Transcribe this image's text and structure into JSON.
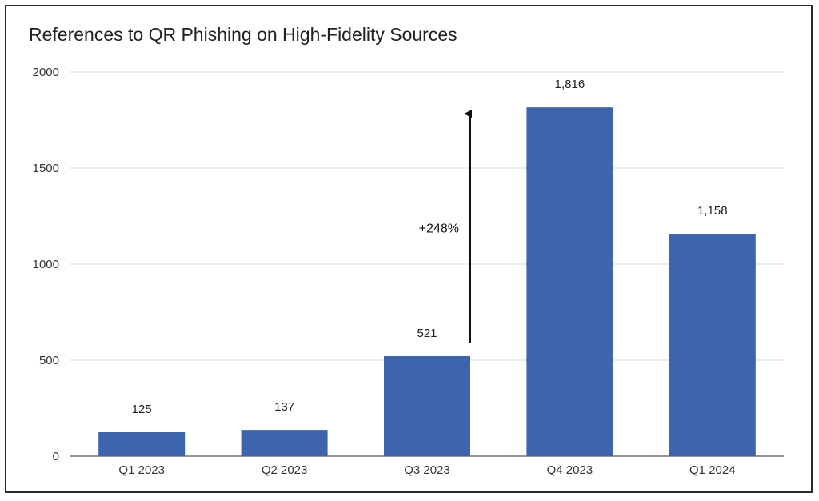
{
  "chart_data": {
    "type": "bar",
    "title": "References to QR Phishing on High-Fidelity Sources",
    "xlabel": "",
    "ylabel": "",
    "categories": [
      "Q1 2023",
      "Q2 2023",
      "Q3 2023",
      "Q4 2023",
      "Q1 2024"
    ],
    "values": [
      125,
      137,
      521,
      1816,
      1158
    ],
    "data_labels": [
      "125",
      "137",
      "521",
      "1,816",
      "1,158"
    ],
    "ylim": [
      0,
      2000
    ],
    "yticks": [
      0,
      500,
      1000,
      1500,
      2000
    ],
    "ytick_labels": [
      "0",
      "500",
      "1000",
      "1500",
      "2000"
    ],
    "grid": true,
    "legend": "none",
    "bar_color": "#3c65ad",
    "annotations": [
      {
        "text": "+248%",
        "from_value": 521,
        "to_value": 1816,
        "category_index": 2
      }
    ]
  }
}
